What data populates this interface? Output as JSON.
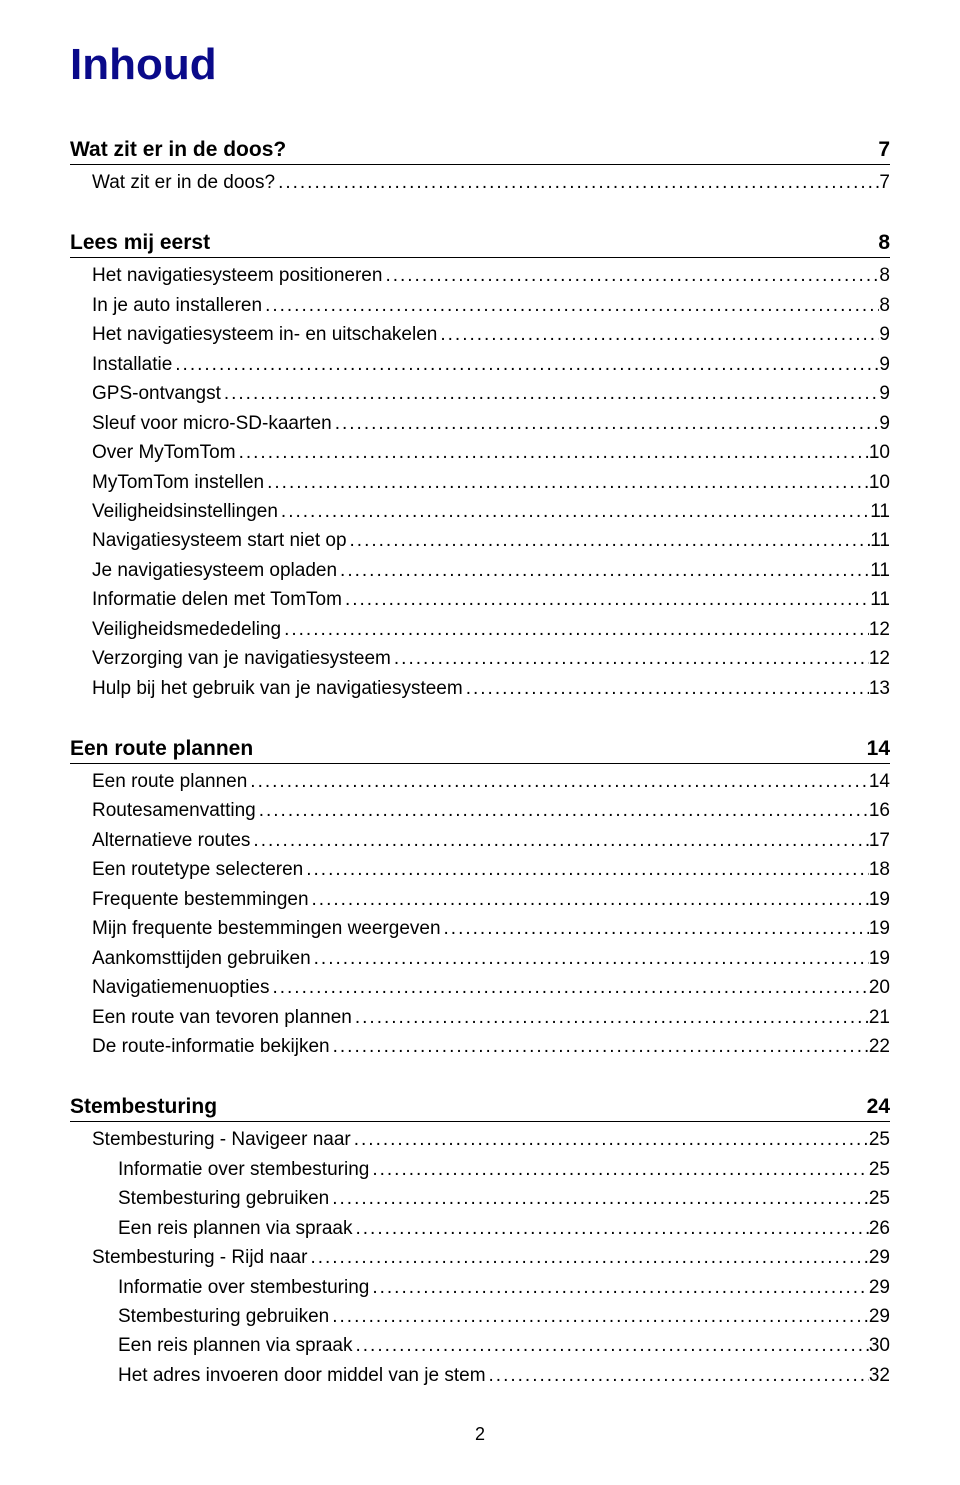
{
  "title": "Inhoud",
  "page_number": "2",
  "dots": ".....................................................................................................................................................................................................................................................",
  "sections": [
    {
      "heading": "Wat zit er in de doos?",
      "page": "7",
      "entries": [
        {
          "label": "Wat zit er in de doos?",
          "page": "7",
          "indent": 0
        }
      ]
    },
    {
      "heading": "Lees mij eerst",
      "page": "8",
      "entries": [
        {
          "label": "Het navigatiesysteem positioneren",
          "page": "8",
          "indent": 0
        },
        {
          "label": "In je auto installeren",
          "page": "8",
          "indent": 0
        },
        {
          "label": "Het navigatiesysteem in- en uitschakelen",
          "page": "9",
          "indent": 0
        },
        {
          "label": "Installatie",
          "page": "9",
          "indent": 0
        },
        {
          "label": "GPS-ontvangst",
          "page": "9",
          "indent": 0
        },
        {
          "label": "Sleuf voor micro-SD-kaarten",
          "page": "9",
          "indent": 0
        },
        {
          "label": "Over MyTomTom",
          "page": "10",
          "indent": 0
        },
        {
          "label": "MyTomTom instellen",
          "page": "10",
          "indent": 0
        },
        {
          "label": "Veiligheidsinstellingen",
          "page": "11",
          "indent": 0
        },
        {
          "label": "Navigatiesysteem start niet op",
          "page": "11",
          "indent": 0
        },
        {
          "label": "Je navigatiesysteem opladen",
          "page": "11",
          "indent": 0
        },
        {
          "label": "Informatie delen met TomTom",
          "page": "11",
          "indent": 0
        },
        {
          "label": "Veiligheidsmededeling",
          "page": "12",
          "indent": 0
        },
        {
          "label": "Verzorging van je navigatiesysteem",
          "page": "12",
          "indent": 0
        },
        {
          "label": "Hulp bij het gebruik van je navigatiesysteem",
          "page": "13",
          "indent": 0
        }
      ]
    },
    {
      "heading": "Een route plannen",
      "page": "14",
      "entries": [
        {
          "label": "Een route plannen",
          "page": "14",
          "indent": 0
        },
        {
          "label": "Routesamenvatting",
          "page": "16",
          "indent": 0
        },
        {
          "label": "Alternatieve routes",
          "page": "17",
          "indent": 0
        },
        {
          "label": "Een routetype selecteren",
          "page": "18",
          "indent": 0
        },
        {
          "label": "Frequente bestemmingen",
          "page": "19",
          "indent": 0
        },
        {
          "label": "Mijn frequente bestemmingen weergeven",
          "page": "19",
          "indent": 0
        },
        {
          "label": "Aankomsttijden gebruiken",
          "page": "19",
          "indent": 0
        },
        {
          "label": "Navigatiemenuopties",
          "page": "20",
          "indent": 0
        },
        {
          "label": "Een route van tevoren plannen",
          "page": "21",
          "indent": 0
        },
        {
          "label": "De route-informatie bekijken",
          "page": "22",
          "indent": 0
        }
      ]
    },
    {
      "heading": "Stembesturing",
      "page": "24",
      "entries": [
        {
          "label": "Stembesturing - Navigeer naar",
          "page": "25",
          "indent": 0
        },
        {
          "label": "Informatie over stembesturing",
          "page": "25",
          "indent": 1
        },
        {
          "label": "Stembesturing gebruiken",
          "page": "25",
          "indent": 1
        },
        {
          "label": "Een reis plannen via spraak",
          "page": "26",
          "indent": 1
        },
        {
          "label": "Stembesturing - Rijd naar",
          "page": "29",
          "indent": 0
        },
        {
          "label": "Informatie over stembesturing",
          "page": "29",
          "indent": 1
        },
        {
          "label": "Stembesturing gebruiken",
          "page": "29",
          "indent": 1
        },
        {
          "label": "Een reis plannen via spraak",
          "page": "30",
          "indent": 1
        },
        {
          "label": "Het adres invoeren door middel van je stem",
          "page": "32",
          "indent": 1
        }
      ]
    }
  ]
}
